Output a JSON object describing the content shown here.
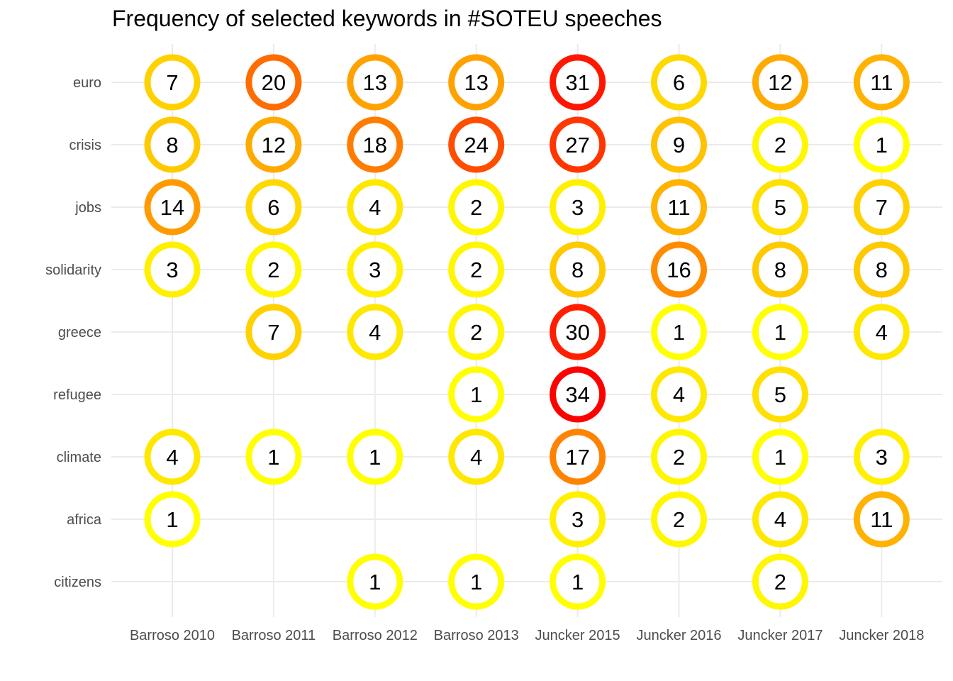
{
  "chart_data": {
    "type": "scatter",
    "title": "Frequency of selected keywords in #SOTEU speeches",
    "xlabel": "",
    "ylabel": "",
    "categories": [
      "Barroso 2010",
      "Barroso 2011",
      "Barroso 2012",
      "Barroso 2013",
      "Juncker 2015",
      "Juncker 2016",
      "Juncker 2017",
      "Juncker 2018"
    ],
    "keywords": [
      "euro",
      "crisis",
      "jobs",
      "solidarity",
      "greece",
      "refugee",
      "climate",
      "africa",
      "citizens"
    ],
    "values": [
      [
        7,
        20,
        13,
        13,
        31,
        6,
        12,
        11
      ],
      [
        8,
        12,
        18,
        24,
        27,
        9,
        2,
        1
      ],
      [
        14,
        6,
        4,
        2,
        3,
        11,
        5,
        7
      ],
      [
        3,
        2,
        3,
        2,
        8,
        16,
        8,
        8
      ],
      [
        null,
        7,
        4,
        2,
        30,
        1,
        1,
        4
      ],
      [
        null,
        null,
        null,
        1,
        34,
        4,
        5,
        null
      ],
      [
        4,
        1,
        1,
        4,
        17,
        2,
        1,
        3
      ],
      [
        1,
        null,
        null,
        null,
        3,
        2,
        4,
        11
      ],
      [
        null,
        null,
        1,
        1,
        1,
        null,
        2,
        null
      ]
    ],
    "color_scale": {
      "low": "#ffff00",
      "high": "#ff0000",
      "min": 1,
      "max": 34
    },
    "grid": true,
    "legend": "none"
  }
}
